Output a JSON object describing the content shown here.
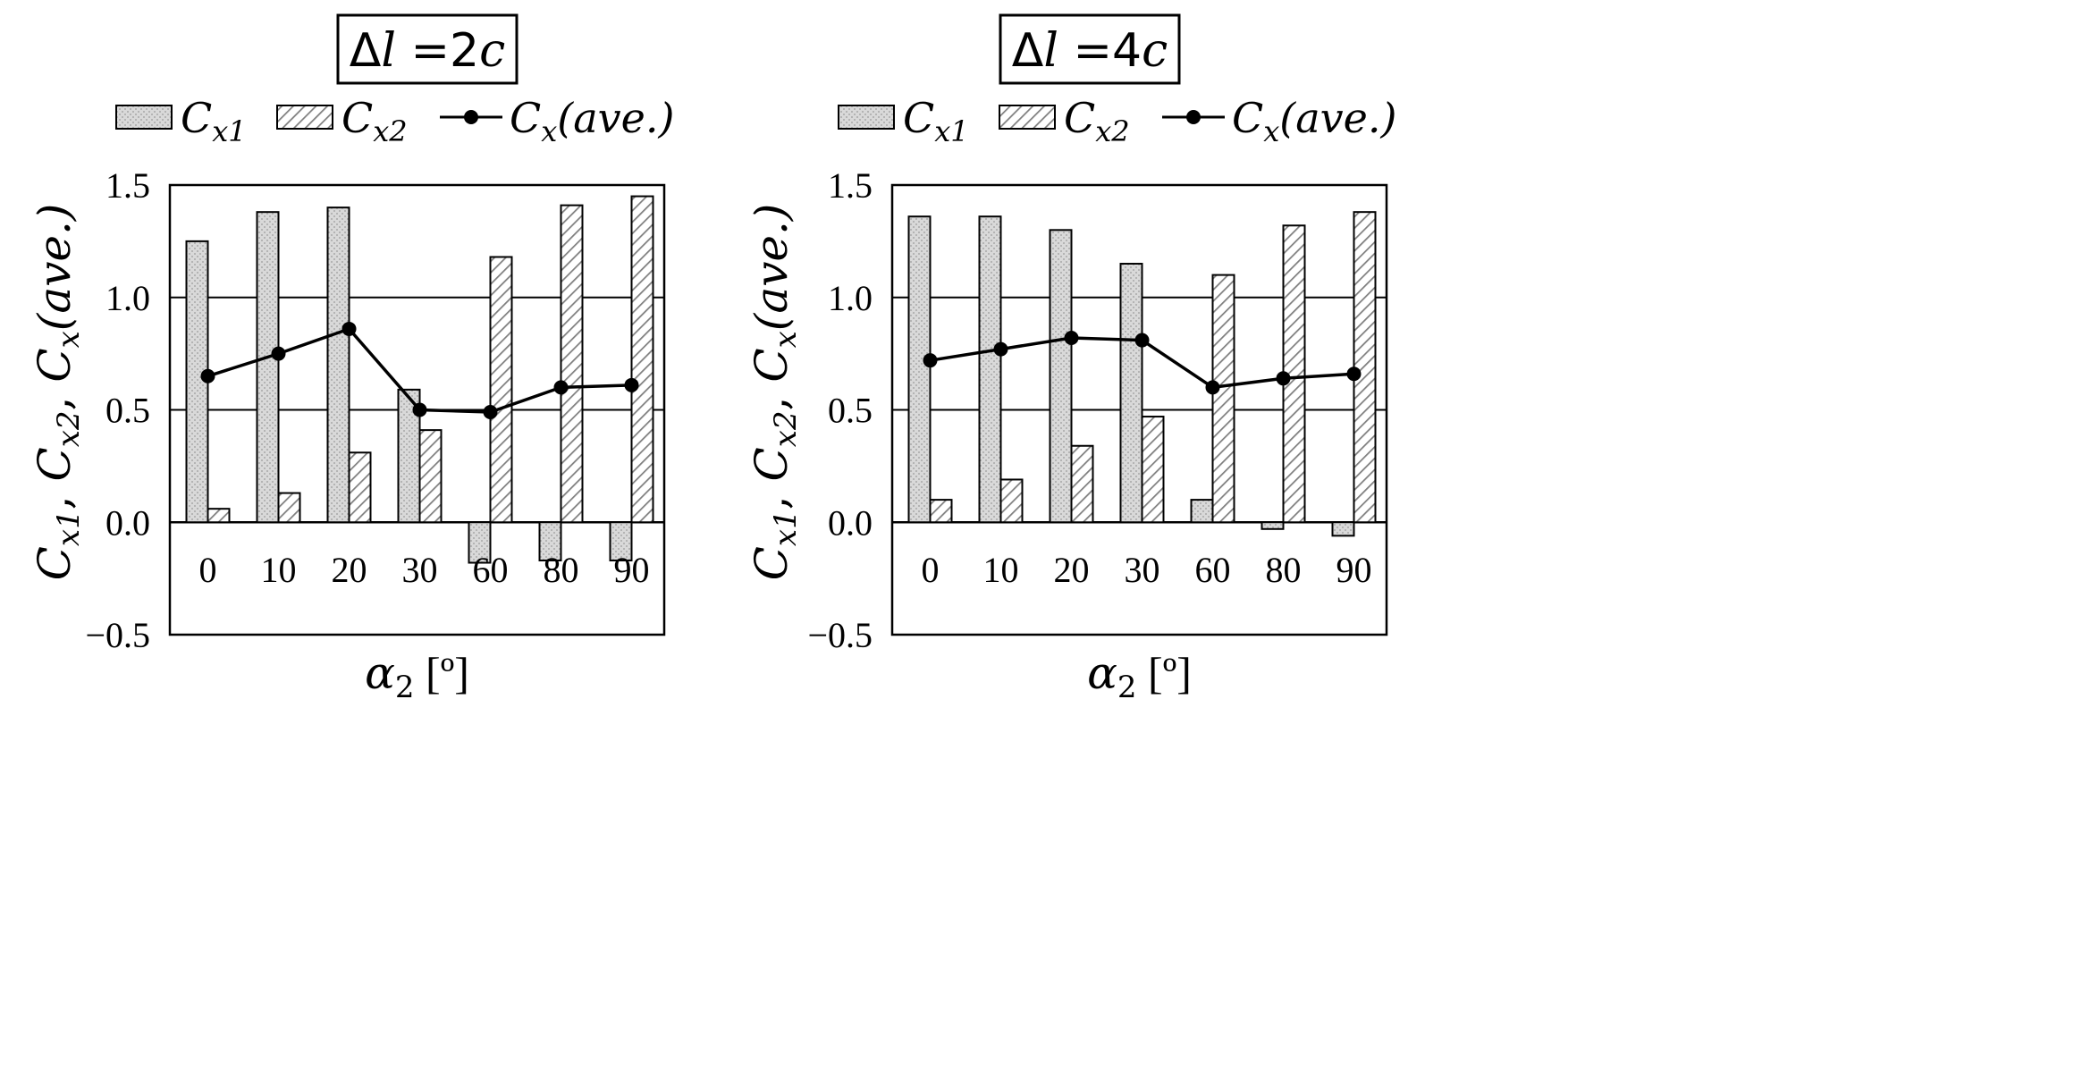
{
  "legend": {
    "cx1_label": "C",
    "cx1_sub": "x1",
    "cx2_label": "C",
    "cx2_sub": "x2",
    "cxave_label": "C",
    "cxave_sub": "x",
    "cxave_suffix": "(ave.)"
  },
  "y_axis_label": {
    "c": "C",
    "sub_x1": "x1",
    "sub_x2": "x2",
    "sub_x": "x",
    "sep": ", ",
    "suffix": "(ave.)"
  },
  "x_axis_label": {
    "symbol": "α",
    "sub": "2",
    "unit": "[º]"
  },
  "colors": {
    "cx1_fill": "#d9d9d9",
    "cx2_fill": "#ffffff",
    "hatch": "#7f7f7f",
    "line": "#000000",
    "grid": "#000000"
  },
  "chart_data": [
    {
      "type": "bar",
      "title_prefix": "Δ",
      "title_var": "l",
      "title_value": " =2",
      "title_unit": "c",
      "xlabel": "α2 [º]",
      "ylabel": "Cx1, Cx2, Cx(ave.)",
      "categories": [
        "0",
        "10",
        "20",
        "30",
        "60",
        "80",
        "90"
      ],
      "ylim": [
        -0.5,
        1.5
      ],
      "yticks": [
        "1.5",
        "1.0",
        "0.5",
        "0.0",
        "−0.5"
      ],
      "ytick_values": [
        1.5,
        1.0,
        0.5,
        0.0,
        -0.5
      ],
      "gridlines": [
        1.0,
        0.5
      ],
      "series": [
        {
          "name": "Cx1",
          "kind": "bar",
          "values": [
            1.25,
            1.38,
            1.4,
            0.59,
            -0.18,
            -0.17,
            -0.17
          ]
        },
        {
          "name": "Cx2",
          "kind": "bar",
          "values": [
            0.06,
            0.13,
            0.31,
            0.41,
            1.18,
            1.41,
            1.45
          ]
        },
        {
          "name": "Cx(ave.)",
          "kind": "line",
          "values": [
            0.65,
            0.75,
            0.86,
            0.5,
            0.49,
            0.6,
            0.61
          ]
        }
      ]
    },
    {
      "type": "bar",
      "title_prefix": "Δ",
      "title_var": "l",
      "title_value": " =4",
      "title_unit": "c",
      "xlabel": "α2 [º]",
      "ylabel": "Cx1, Cx2, Cx(ave.)",
      "categories": [
        "0",
        "10",
        "20",
        "30",
        "60",
        "80",
        "90"
      ],
      "ylim": [
        -0.5,
        1.5
      ],
      "yticks": [
        "1.5",
        "1.0",
        "0.5",
        "0.0",
        "−0.5"
      ],
      "ytick_values": [
        1.5,
        1.0,
        0.5,
        0.0,
        -0.5
      ],
      "gridlines": [
        1.0,
        0.5
      ],
      "series": [
        {
          "name": "Cx1",
          "kind": "bar",
          "values": [
            1.36,
            1.36,
            1.3,
            1.15,
            0.1,
            -0.03,
            -0.06
          ]
        },
        {
          "name": "Cx2",
          "kind": "bar",
          "values": [
            0.1,
            0.19,
            0.34,
            0.47,
            1.1,
            1.32,
            1.38
          ]
        },
        {
          "name": "Cx(ave.)",
          "kind": "line",
          "values": [
            0.72,
            0.77,
            0.82,
            0.81,
            0.6,
            0.64,
            0.66
          ]
        }
      ]
    }
  ]
}
